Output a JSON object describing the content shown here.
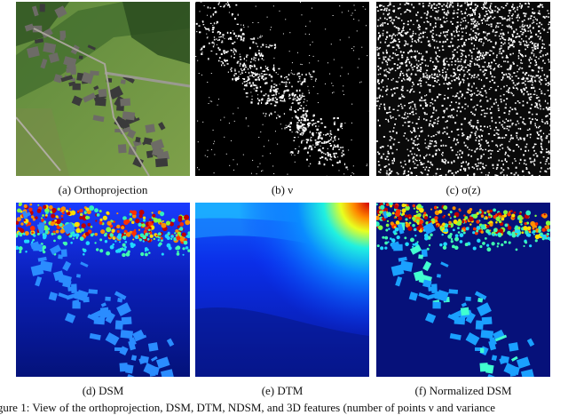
{
  "panels": [
    {
      "id": "a",
      "caption": "(a) Orthoprojection"
    },
    {
      "id": "b",
      "caption": "(b) ν"
    },
    {
      "id": "c",
      "caption": "(c) σ(z)"
    },
    {
      "id": "d",
      "caption": "(d) DSM"
    },
    {
      "id": "e",
      "caption": "(e) DTM"
    },
    {
      "id": "f",
      "caption": "(f) Normalized DSM"
    }
  ],
  "figure_caption": "Figure 1: View of the orthoprojection, DSM, DTM, NDSM, and 3D features (number of points ν and variance"
}
